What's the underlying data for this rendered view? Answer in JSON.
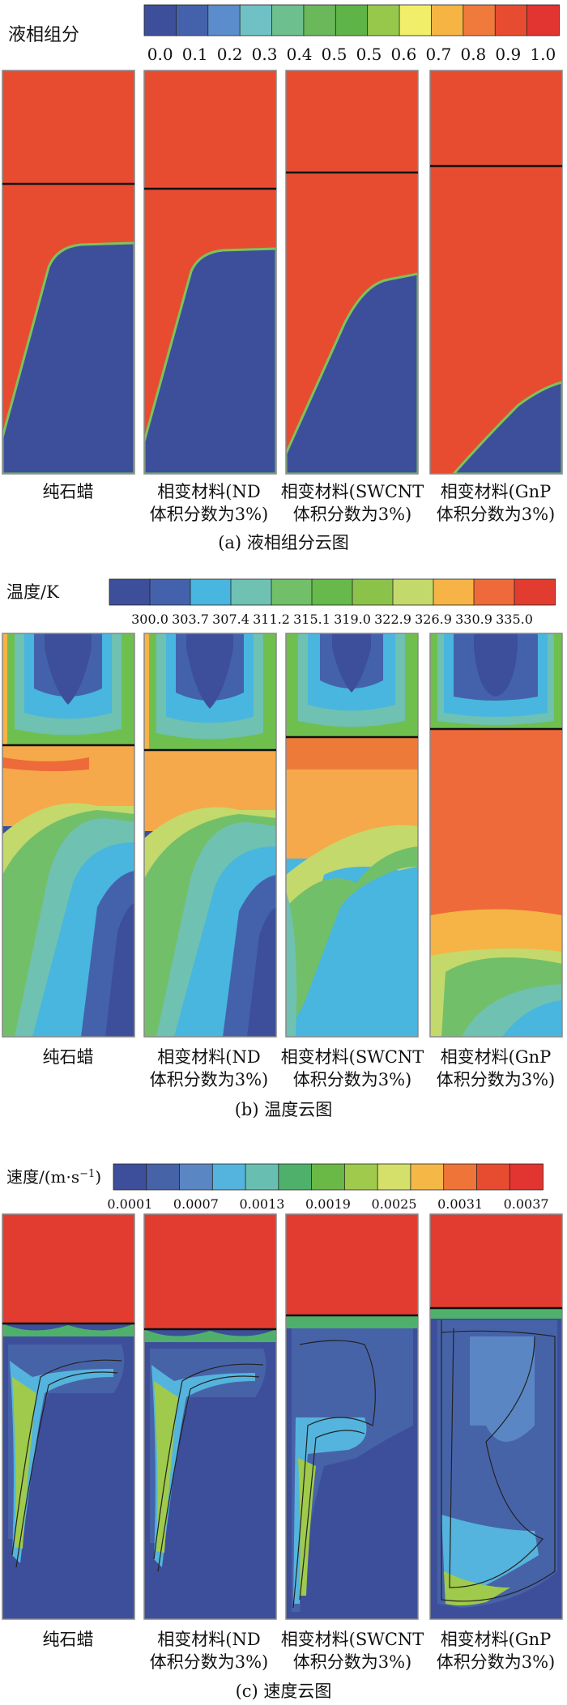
{
  "colors": {
    "liquid": "#e84c30",
    "solid": "#3d4f9a",
    "border": "#888888",
    "interface": "#111111",
    "temp_palette": [
      "#3d4f9a",
      "#4462ac",
      "#48b6df",
      "#6fc1b2",
      "#72bf69",
      "#67b94c",
      "#8bc24a",
      "#c4d96b",
      "#f5b445",
      "#ee6a3a",
      "#e23c31"
    ],
    "liquid_palette": [
      "#3d4f9a",
      "#4462ac",
      "#5b8ccb",
      "#6fc1c6",
      "#6dbf8e",
      "#6ab85a",
      "#5fb448",
      "#98c84b",
      "#f1ee6a",
      "#f6b443",
      "#ef7a3b",
      "#e84c30",
      "#e23431"
    ],
    "vel_palette": [
      "#3d4f9a",
      "#4763a8",
      "#5a86c4",
      "#54b4dd",
      "#68bfb1",
      "#4fb06c",
      "#6ab845",
      "#9fca4b",
      "#d5e06a",
      "#f5b846",
      "#ef7438",
      "#e84c30",
      "#e23431"
    ]
  },
  "panel_a": {
    "legend_title": "液相组分",
    "legend_ticks": [
      "0.0",
      "0.1",
      "0.2",
      "0.3",
      "0.4",
      "0.5",
      "0.5",
      "0.6",
      "0.7",
      "0.8",
      "0.9",
      "1.0"
    ],
    "caption": "(a) 液相组分云图",
    "interface_heights": [
      0.72,
      0.71,
      0.745,
      0.76
    ],
    "solid_top_fraction": [
      0.56,
      0.54,
      0.48,
      0.16
    ]
  },
  "panel_b": {
    "legend_title": "温度/K",
    "legend_ticks": [
      "300.0",
      "303.7",
      "307.4",
      "311.2",
      "315.1",
      "319.0",
      "322.9",
      "326.9",
      "330.9",
      "335.0"
    ],
    "caption": "(b) 温度云图"
  },
  "panel_c": {
    "legend_title": "速度/(m·s",
    "legend_title_sup": "−1",
    "legend_title_end": ")",
    "legend_ticks": [
      "0.0001",
      "0.0007",
      "0.0013",
      "0.0019",
      "0.0025",
      "0.0031",
      "0.0037"
    ],
    "caption": "(c) 速度云图"
  },
  "columns": [
    {
      "line1": "纯石蜡",
      "line2": ""
    },
    {
      "line1": "相变材料(ND",
      "line2": "体积分数为3%)"
    },
    {
      "line1": "相变材料(SWCNT",
      "line2": "体积分数为3%)"
    },
    {
      "line1": "相变材料(GnP",
      "line2": "体积分数为3%)"
    }
  ]
}
